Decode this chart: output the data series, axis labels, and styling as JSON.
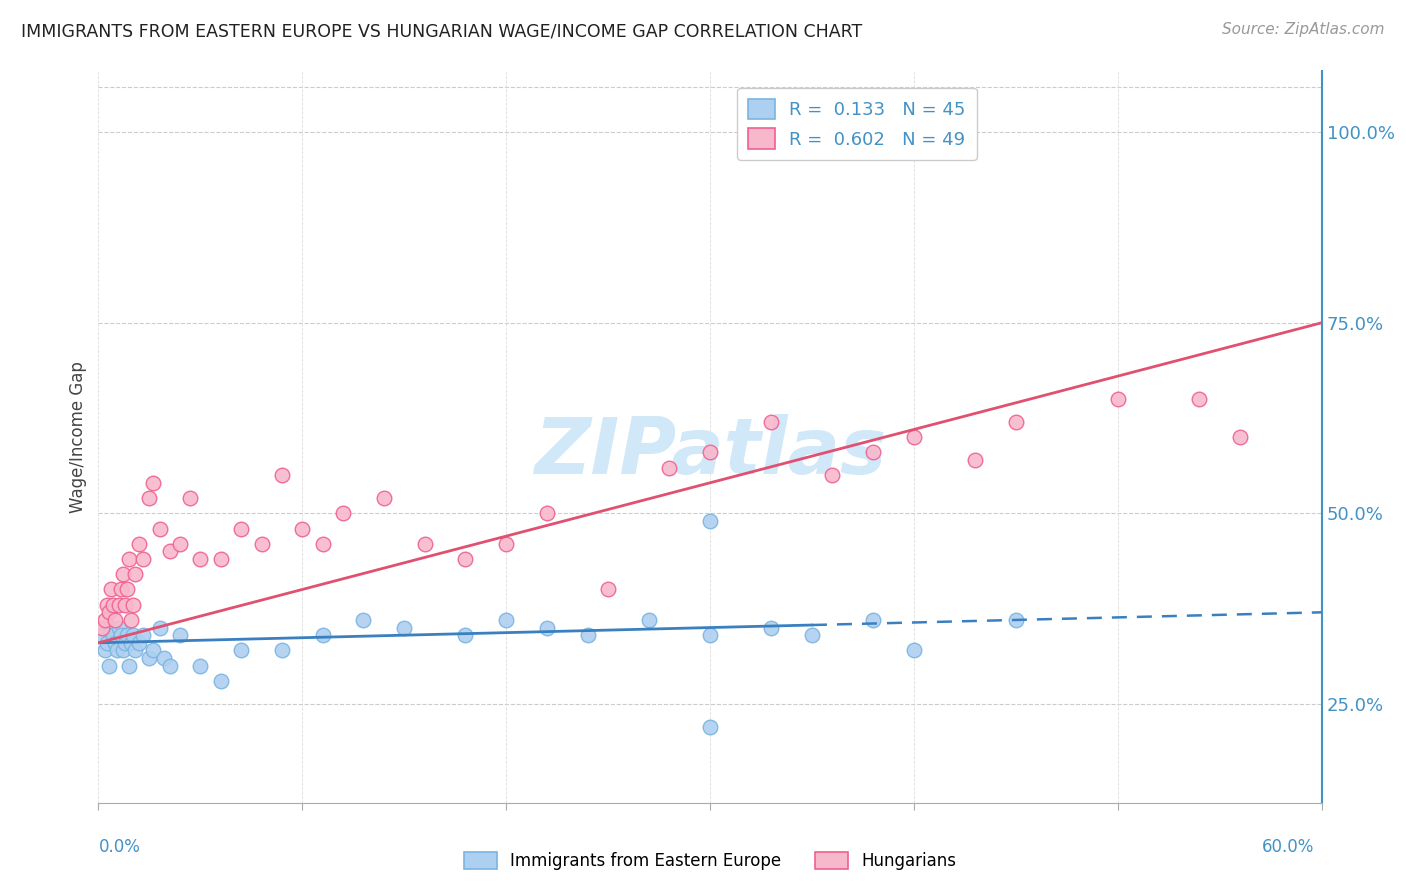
{
  "title": "IMMIGRANTS FROM EASTERN EUROPE VS HUNGARIAN WAGE/INCOME GAP CORRELATION CHART",
  "source": "Source: ZipAtlas.com",
  "ylabel": "Wage/Income Gap",
  "xlim": [
    0.0,
    60.0
  ],
  "ylim": [
    12.0,
    108.0
  ],
  "yticks": [
    25.0,
    50.0,
    75.0,
    100.0
  ],
  "blue_R": "0.133",
  "blue_N": "45",
  "pink_R": "0.602",
  "pink_N": "49",
  "blue_color": "#7ab4e0",
  "blue_face": "#aed0f0",
  "pink_color": "#f06090",
  "pink_face": "#f8b8cc",
  "trend_blue_color": "#3a80c0",
  "trend_pink_color": "#e05070",
  "watermark_color": "#d0e8f8",
  "blue_scatter_x": [
    0.2,
    0.3,
    0.4,
    0.5,
    0.6,
    0.7,
    0.8,
    0.9,
    1.0,
    1.1,
    1.2,
    1.3,
    1.4,
    1.5,
    1.6,
    1.7,
    1.8,
    2.0,
    2.2,
    2.5,
    2.7,
    3.0,
    3.2,
    3.5,
    4.0,
    5.0,
    6.0,
    7.0,
    9.0,
    11.0,
    13.0,
    15.0,
    18.0,
    20.0,
    22.0,
    24.0,
    27.0,
    30.0,
    30.0,
    33.0,
    35.0,
    38.0,
    40.0,
    45.0,
    30.0
  ],
  "blue_scatter_y": [
    34,
    32,
    33,
    30,
    35,
    34,
    33,
    32,
    35,
    34,
    32,
    33,
    34,
    30,
    33,
    34,
    32,
    33,
    34,
    31,
    32,
    35,
    31,
    30,
    34,
    30,
    28,
    32,
    32,
    34,
    36,
    35,
    34,
    36,
    35,
    34,
    36,
    34,
    49,
    35,
    34,
    36,
    32,
    36,
    22
  ],
  "pink_scatter_x": [
    0.2,
    0.3,
    0.4,
    0.5,
    0.6,
    0.7,
    0.8,
    1.0,
    1.1,
    1.2,
    1.3,
    1.4,
    1.5,
    1.6,
    1.7,
    1.8,
    2.0,
    2.2,
    2.5,
    2.7,
    3.0,
    3.5,
    4.0,
    4.5,
    5.0,
    6.0,
    7.0,
    8.0,
    9.0,
    10.0,
    11.0,
    12.0,
    14.0,
    16.0,
    18.0,
    20.0,
    22.0,
    25.0,
    28.0,
    30.0,
    33.0,
    36.0,
    38.0,
    40.0,
    43.0,
    45.0,
    50.0,
    54.0,
    56.0
  ],
  "pink_scatter_y": [
    35,
    36,
    38,
    37,
    40,
    38,
    36,
    38,
    40,
    42,
    38,
    40,
    44,
    36,
    38,
    42,
    46,
    44,
    52,
    54,
    48,
    45,
    46,
    52,
    44,
    44,
    48,
    46,
    55,
    48,
    46,
    50,
    52,
    46,
    44,
    46,
    50,
    40,
    56,
    58,
    62,
    55,
    58,
    60,
    57,
    62,
    65,
    65,
    60
  ],
  "blue_solid_end": 35,
  "blue_dashed_start": 35
}
